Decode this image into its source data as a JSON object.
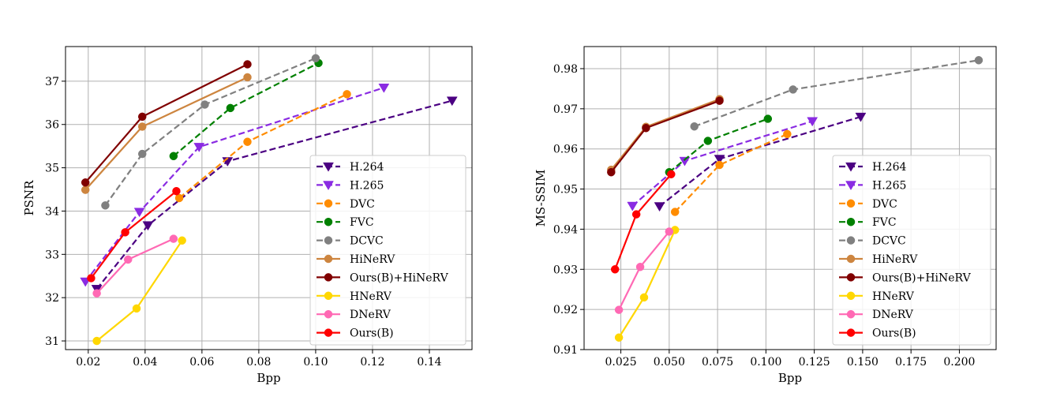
{
  "chart_data": [
    {
      "type": "line",
      "xlabel": "Bpp",
      "ylabel": "PSNR",
      "xlim": [
        0.012,
        0.155
      ],
      "ylim": [
        30.8,
        37.8
      ],
      "xticks": [
        0.02,
        0.04,
        0.06,
        0.08,
        0.1,
        0.12,
        0.14
      ],
      "xtick_labels": [
        "0.02",
        "0.04",
        "0.06",
        "0.08",
        "0.10",
        "0.12",
        "0.14"
      ],
      "yticks": [
        31,
        32,
        33,
        34,
        35,
        36,
        37
      ],
      "ytick_labels": [
        "31",
        "32",
        "33",
        "34",
        "35",
        "36",
        "37"
      ],
      "grid": true,
      "legend_position": "lower-right",
      "series": [
        {
          "name": "H.264",
          "color": "#4b0082",
          "dash": true,
          "marker": "triangle-down",
          "x": [
            0.023,
            0.041,
            0.069,
            0.148
          ],
          "y": [
            32.2,
            33.67,
            35.15,
            36.55
          ]
        },
        {
          "name": "H.265",
          "color": "#8a2be2",
          "dash": true,
          "marker": "triangle-down",
          "x": [
            0.019,
            0.038,
            0.059,
            0.124
          ],
          "y": [
            32.37,
            33.98,
            35.48,
            36.85
          ]
        },
        {
          "name": "DVC",
          "color": "#ff8c00",
          "dash": true,
          "marker": "circle",
          "x": [
            0.052,
            0.076,
            0.111
          ],
          "y": [
            34.3,
            35.6,
            36.7
          ]
        },
        {
          "name": "FVC",
          "color": "#008000",
          "dash": true,
          "marker": "circle",
          "x": [
            0.05,
            0.07,
            0.101
          ],
          "y": [
            35.27,
            36.38,
            37.42
          ]
        },
        {
          "name": "DCVC",
          "color": "#808080",
          "dash": true,
          "marker": "circle",
          "x": [
            0.026,
            0.039,
            0.061,
            0.1
          ],
          "y": [
            34.13,
            35.32,
            36.46,
            37.53
          ]
        },
        {
          "name": "HiNeRV",
          "color": "#cd853f",
          "dash": false,
          "marker": "circle",
          "x": [
            0.019,
            0.039,
            0.076
          ],
          "y": [
            34.49,
            35.95,
            37.09
          ]
        },
        {
          "name": "Ours(B)+HiNeRV",
          "color": "#800000",
          "dash": false,
          "marker": "circle",
          "x": [
            0.019,
            0.039,
            0.076
          ],
          "y": [
            34.66,
            36.18,
            37.39
          ]
        },
        {
          "name": "HNeRV",
          "color": "#ffd700",
          "dash": false,
          "marker": "circle",
          "x": [
            0.023,
            0.037,
            0.053
          ],
          "y": [
            31.0,
            31.75,
            33.32
          ]
        },
        {
          "name": "DNeRV",
          "color": "#ff69b4",
          "dash": false,
          "marker": "circle",
          "x": [
            0.023,
            0.034,
            0.05
          ],
          "y": [
            32.1,
            32.88,
            33.36
          ]
        },
        {
          "name": "Ours(B)",
          "color": "#ff0000",
          "dash": false,
          "marker": "circle",
          "x": [
            0.021,
            0.033,
            0.051
          ],
          "y": [
            32.45,
            33.51,
            34.46
          ]
        }
      ]
    },
    {
      "type": "line",
      "xlabel": "Bpp",
      "ylabel": "MS-SSIM",
      "xlim": [
        0.006,
        0.219
      ],
      "ylim": [
        0.91,
        0.9855
      ],
      "xticks": [
        0.025,
        0.05,
        0.075,
        0.1,
        0.125,
        0.15,
        0.175,
        0.2
      ],
      "xtick_labels": [
        "0.025",
        "0.050",
        "0.075",
        "0.100",
        "0.125",
        "0.150",
        "0.175",
        "0.200"
      ],
      "yticks": [
        0.91,
        0.92,
        0.93,
        0.94,
        0.95,
        0.96,
        0.97,
        0.98
      ],
      "ytick_labels": [
        "0.91",
        "0.92",
        "0.93",
        "0.94",
        "0.95",
        "0.96",
        "0.97",
        "0.98"
      ],
      "grid": true,
      "legend_position": "lower-right",
      "series": [
        {
          "name": "H.264",
          "color": "#4b0082",
          "dash": true,
          "marker": "triangle-down",
          "x": [
            0.045,
            0.076,
            0.149
          ],
          "y": [
            0.9457,
            0.9575,
            0.968
          ]
        },
        {
          "name": "H.265",
          "color": "#8a2be2",
          "dash": true,
          "marker": "triangle-down",
          "x": [
            0.031,
            0.058,
            0.124
          ],
          "y": [
            0.9458,
            0.957,
            0.9669
          ]
        },
        {
          "name": "DVC",
          "color": "#ff8c00",
          "dash": true,
          "marker": "circle",
          "x": [
            0.053,
            0.076,
            0.111
          ],
          "y": [
            0.9443,
            0.956,
            0.9637
          ]
        },
        {
          "name": "FVC",
          "color": "#008000",
          "dash": true,
          "marker": "circle",
          "x": [
            0.05,
            0.07,
            0.101
          ],
          "y": [
            0.9542,
            0.962,
            0.9675
          ]
        },
        {
          "name": "DCVC",
          "color": "#808080",
          "dash": true,
          "marker": "circle",
          "x": [
            0.063,
            0.114,
            0.21
          ],
          "y": [
            0.9656,
            0.9748,
            0.9821
          ]
        },
        {
          "name": "HiNeRV",
          "color": "#cd853f",
          "dash": false,
          "marker": "circle",
          "x": [
            0.02,
            0.038,
            0.076
          ],
          "y": [
            0.9548,
            0.9655,
            0.9724
          ]
        },
        {
          "name": "Ours(B)+HiNeRV",
          "color": "#800000",
          "dash": false,
          "marker": "circle",
          "x": [
            0.02,
            0.038,
            0.076
          ],
          "y": [
            0.9542,
            0.9652,
            0.972
          ]
        },
        {
          "name": "HNeRV",
          "color": "#ffd700",
          "dash": false,
          "marker": "circle",
          "x": [
            0.024,
            0.037,
            0.053
          ],
          "y": [
            0.913,
            0.923,
            0.9398
          ]
        },
        {
          "name": "DNeRV",
          "color": "#ff69b4",
          "dash": false,
          "marker": "circle",
          "x": [
            0.024,
            0.035,
            0.05
          ],
          "y": [
            0.9199,
            0.9306,
            0.9394
          ]
        },
        {
          "name": "Ours(B)",
          "color": "#ff0000",
          "dash": false,
          "marker": "circle",
          "x": [
            0.022,
            0.033,
            0.051
          ],
          "y": [
            0.93,
            0.9437,
            0.9537
          ]
        }
      ]
    }
  ]
}
